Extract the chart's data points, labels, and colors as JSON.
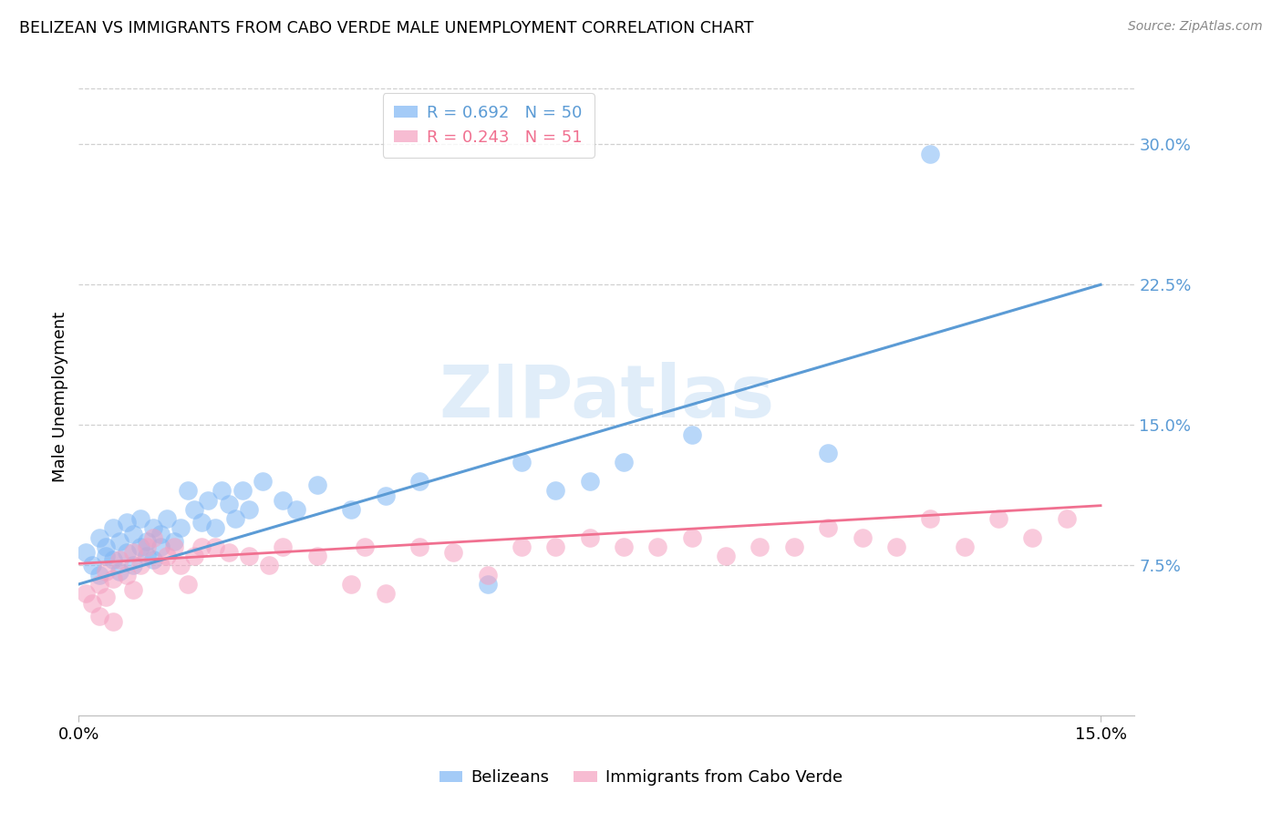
{
  "title": "BELIZEAN VS IMMIGRANTS FROM CABO VERDE MALE UNEMPLOYMENT CORRELATION CHART",
  "source": "Source: ZipAtlas.com",
  "ylabel_label": "Male Unemployment",
  "right_ytick_labels": [
    "7.5%",
    "15.0%",
    "22.5%",
    "30.0%"
  ],
  "right_ytick_vals": [
    0.075,
    0.15,
    0.225,
    0.3
  ],
  "xlim": [
    0.0,
    0.155
  ],
  "ylim": [
    -0.005,
    0.335
  ],
  "legend_blue_R": "R = 0.692",
  "legend_blue_N": "N = 50",
  "legend_pink_R": "R = 0.243",
  "legend_pink_N": "N = 51",
  "legend_label_blue": "Belizeans",
  "legend_label_pink": "Immigrants from Cabo Verde",
  "blue_color": "#7EB6F5",
  "pink_color": "#F5A0C0",
  "blue_line_color": "#5B9BD5",
  "pink_line_color": "#F07090",
  "watermark": "ZIPatlas",
  "blue_scatter_x": [
    0.001,
    0.002,
    0.003,
    0.003,
    0.004,
    0.004,
    0.005,
    0.005,
    0.006,
    0.006,
    0.007,
    0.007,
    0.008,
    0.008,
    0.009,
    0.009,
    0.01,
    0.01,
    0.011,
    0.011,
    0.012,
    0.012,
    0.013,
    0.014,
    0.015,
    0.016,
    0.017,
    0.018,
    0.019,
    0.02,
    0.021,
    0.022,
    0.023,
    0.024,
    0.025,
    0.027,
    0.03,
    0.032,
    0.035,
    0.04,
    0.045,
    0.05,
    0.06,
    0.065,
    0.07,
    0.075,
    0.08,
    0.09,
    0.11,
    0.125
  ],
  "blue_scatter_y": [
    0.082,
    0.075,
    0.09,
    0.07,
    0.085,
    0.08,
    0.095,
    0.078,
    0.088,
    0.072,
    0.098,
    0.082,
    0.092,
    0.075,
    0.1,
    0.085,
    0.088,
    0.08,
    0.095,
    0.078,
    0.092,
    0.085,
    0.1,
    0.088,
    0.095,
    0.115,
    0.105,
    0.098,
    0.11,
    0.095,
    0.115,
    0.108,
    0.1,
    0.115,
    0.105,
    0.12,
    0.11,
    0.105,
    0.118,
    0.105,
    0.112,
    0.12,
    0.065,
    0.13,
    0.115,
    0.12,
    0.13,
    0.145,
    0.135,
    0.295
  ],
  "pink_scatter_x": [
    0.001,
    0.002,
    0.003,
    0.003,
    0.004,
    0.004,
    0.005,
    0.005,
    0.006,
    0.007,
    0.008,
    0.008,
    0.009,
    0.01,
    0.011,
    0.012,
    0.013,
    0.014,
    0.015,
    0.016,
    0.017,
    0.018,
    0.02,
    0.022,
    0.025,
    0.028,
    0.03,
    0.035,
    0.04,
    0.042,
    0.045,
    0.05,
    0.055,
    0.06,
    0.065,
    0.07,
    0.075,
    0.08,
    0.085,
    0.09,
    0.095,
    0.1,
    0.105,
    0.11,
    0.115,
    0.12,
    0.125,
    0.13,
    0.135,
    0.14,
    0.145
  ],
  "pink_scatter_y": [
    0.06,
    0.055,
    0.065,
    0.048,
    0.058,
    0.072,
    0.068,
    0.045,
    0.078,
    0.07,
    0.082,
    0.062,
    0.075,
    0.085,
    0.09,
    0.075,
    0.08,
    0.085,
    0.075,
    0.065,
    0.08,
    0.085,
    0.085,
    0.082,
    0.08,
    0.075,
    0.085,
    0.08,
    0.065,
    0.085,
    0.06,
    0.085,
    0.082,
    0.07,
    0.085,
    0.085,
    0.09,
    0.085,
    0.085,
    0.09,
    0.08,
    0.085,
    0.085,
    0.095,
    0.09,
    0.085,
    0.1,
    0.085,
    0.1,
    0.09,
    0.1
  ],
  "blue_line_x": [
    0.0,
    0.15
  ],
  "blue_line_y": [
    0.065,
    0.225
  ],
  "pink_line_x": [
    0.0,
    0.15
  ],
  "pink_line_y": [
    0.076,
    0.107
  ]
}
